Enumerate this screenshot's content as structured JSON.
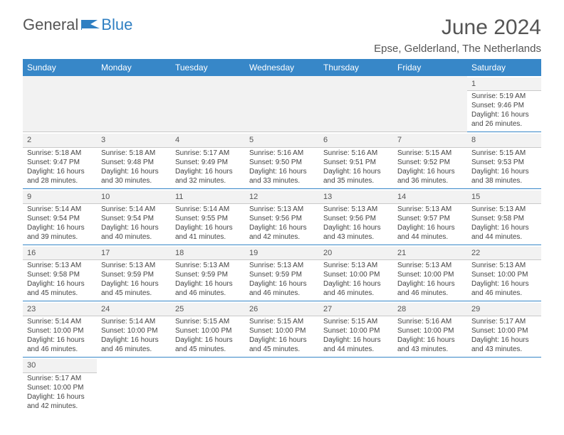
{
  "header": {
    "logo_text_main": "General",
    "logo_text_accent": "Blue",
    "month_title": "June 2024",
    "location": "Epse, Gelderland, The Netherlands"
  },
  "colors": {
    "header_bg": "#3787c8",
    "header_text": "#ffffff",
    "logo_accent": "#2f7fc2",
    "text": "#555555",
    "cell_text": "#444444",
    "alt_row_bg": "#f2f2f2",
    "divider": "#3787c8",
    "light_divider": "#c9c9c9"
  },
  "days_of_week": [
    "Sunday",
    "Monday",
    "Tuesday",
    "Wednesday",
    "Thursday",
    "Friday",
    "Saturday"
  ],
  "labels": {
    "sunrise_prefix": "Sunrise: ",
    "sunset_prefix": "Sunset: ",
    "daylight_prefix": "Daylight: ",
    "daylight_suffix": " minutes."
  },
  "weeks": [
    [
      null,
      null,
      null,
      null,
      null,
      null,
      {
        "day": "1",
        "sunrise": "5:19 AM",
        "sunset": "9:46 PM",
        "daylight": "16 hours and 26"
      }
    ],
    [
      {
        "day": "2",
        "sunrise": "5:18 AM",
        "sunset": "9:47 PM",
        "daylight": "16 hours and 28"
      },
      {
        "day": "3",
        "sunrise": "5:18 AM",
        "sunset": "9:48 PM",
        "daylight": "16 hours and 30"
      },
      {
        "day": "4",
        "sunrise": "5:17 AM",
        "sunset": "9:49 PM",
        "daylight": "16 hours and 32"
      },
      {
        "day": "5",
        "sunrise": "5:16 AM",
        "sunset": "9:50 PM",
        "daylight": "16 hours and 33"
      },
      {
        "day": "6",
        "sunrise": "5:16 AM",
        "sunset": "9:51 PM",
        "daylight": "16 hours and 35"
      },
      {
        "day": "7",
        "sunrise": "5:15 AM",
        "sunset": "9:52 PM",
        "daylight": "16 hours and 36"
      },
      {
        "day": "8",
        "sunrise": "5:15 AM",
        "sunset": "9:53 PM",
        "daylight": "16 hours and 38"
      }
    ],
    [
      {
        "day": "9",
        "sunrise": "5:14 AM",
        "sunset": "9:54 PM",
        "daylight": "16 hours and 39"
      },
      {
        "day": "10",
        "sunrise": "5:14 AM",
        "sunset": "9:54 PM",
        "daylight": "16 hours and 40"
      },
      {
        "day": "11",
        "sunrise": "5:14 AM",
        "sunset": "9:55 PM",
        "daylight": "16 hours and 41"
      },
      {
        "day": "12",
        "sunrise": "5:13 AM",
        "sunset": "9:56 PM",
        "daylight": "16 hours and 42"
      },
      {
        "day": "13",
        "sunrise": "5:13 AM",
        "sunset": "9:56 PM",
        "daylight": "16 hours and 43"
      },
      {
        "day": "14",
        "sunrise": "5:13 AM",
        "sunset": "9:57 PM",
        "daylight": "16 hours and 44"
      },
      {
        "day": "15",
        "sunrise": "5:13 AM",
        "sunset": "9:58 PM",
        "daylight": "16 hours and 44"
      }
    ],
    [
      {
        "day": "16",
        "sunrise": "5:13 AM",
        "sunset": "9:58 PM",
        "daylight": "16 hours and 45"
      },
      {
        "day": "17",
        "sunrise": "5:13 AM",
        "sunset": "9:59 PM",
        "daylight": "16 hours and 45"
      },
      {
        "day": "18",
        "sunrise": "5:13 AM",
        "sunset": "9:59 PM",
        "daylight": "16 hours and 46"
      },
      {
        "day": "19",
        "sunrise": "5:13 AM",
        "sunset": "9:59 PM",
        "daylight": "16 hours and 46"
      },
      {
        "day": "20",
        "sunrise": "5:13 AM",
        "sunset": "10:00 PM",
        "daylight": "16 hours and 46"
      },
      {
        "day": "21",
        "sunrise": "5:13 AM",
        "sunset": "10:00 PM",
        "daylight": "16 hours and 46"
      },
      {
        "day": "22",
        "sunrise": "5:13 AM",
        "sunset": "10:00 PM",
        "daylight": "16 hours and 46"
      }
    ],
    [
      {
        "day": "23",
        "sunrise": "5:14 AM",
        "sunset": "10:00 PM",
        "daylight": "16 hours and 46"
      },
      {
        "day": "24",
        "sunrise": "5:14 AM",
        "sunset": "10:00 PM",
        "daylight": "16 hours and 46"
      },
      {
        "day": "25",
        "sunrise": "5:15 AM",
        "sunset": "10:00 PM",
        "daylight": "16 hours and 45"
      },
      {
        "day": "26",
        "sunrise": "5:15 AM",
        "sunset": "10:00 PM",
        "daylight": "16 hours and 45"
      },
      {
        "day": "27",
        "sunrise": "5:15 AM",
        "sunset": "10:00 PM",
        "daylight": "16 hours and 44"
      },
      {
        "day": "28",
        "sunrise": "5:16 AM",
        "sunset": "10:00 PM",
        "daylight": "16 hours and 43"
      },
      {
        "day": "29",
        "sunrise": "5:17 AM",
        "sunset": "10:00 PM",
        "daylight": "16 hours and 43"
      }
    ],
    [
      {
        "day": "30",
        "sunrise": "5:17 AM",
        "sunset": "10:00 PM",
        "daylight": "16 hours and 42"
      },
      null,
      null,
      null,
      null,
      null,
      null
    ]
  ]
}
